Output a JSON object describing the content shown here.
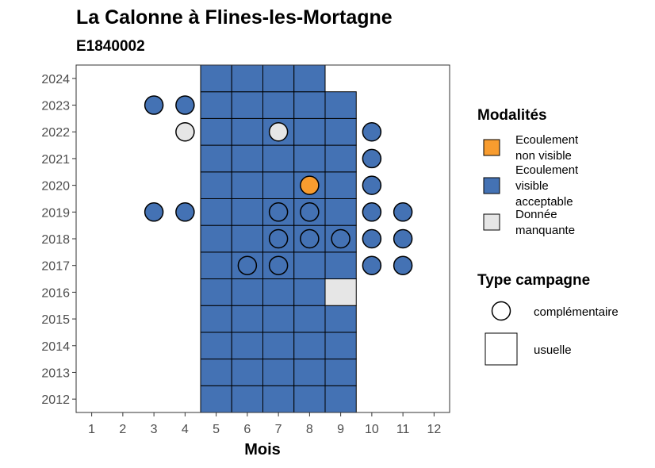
{
  "chart_data": {
    "type": "heatmap",
    "title": "La Calonne à Flines-les-Mortagne",
    "subtitle": "E1840002",
    "xlabel": "Mois",
    "ylabel": "",
    "x_ticks": [
      1,
      2,
      3,
      4,
      5,
      6,
      7,
      8,
      9,
      10,
      11,
      12
    ],
    "y_ticks": [
      2012,
      2013,
      2014,
      2015,
      2016,
      2017,
      2018,
      2019,
      2020,
      2021,
      2022,
      2023,
      2024
    ],
    "xlim": [
      0.5,
      12.5
    ],
    "ylim": [
      2011.5,
      2024.5
    ],
    "grid": false,
    "legend_position": "right",
    "colors": {
      "Ecoulement non visible": "#f89c2f",
      "Ecoulement visible acceptable": "#4472b4",
      "Donnée manquante": "#e6e6e6"
    },
    "tiles": [
      {
        "year": 2012,
        "months": [
          5,
          6,
          7,
          8,
          9
        ],
        "modalite": "Ecoulement visible acceptable"
      },
      {
        "year": 2013,
        "months": [
          5,
          6,
          7,
          8,
          9
        ],
        "modalite": "Ecoulement visible acceptable"
      },
      {
        "year": 2014,
        "months": [
          5,
          6,
          7,
          8,
          9
        ],
        "modalite": "Ecoulement visible acceptable"
      },
      {
        "year": 2015,
        "months": [
          5,
          6,
          7,
          8,
          9
        ],
        "modalite": "Ecoulement visible acceptable"
      },
      {
        "year": 2016,
        "months": [
          5,
          6,
          7,
          8
        ],
        "modalite": "Ecoulement visible acceptable"
      },
      {
        "year": 2016,
        "months": [
          9
        ],
        "modalite": "Donnée manquante"
      },
      {
        "year": 2017,
        "months": [
          5,
          6,
          7,
          8,
          9
        ],
        "modalite": "Ecoulement visible acceptable"
      },
      {
        "year": 2018,
        "months": [
          5,
          6,
          7,
          8,
          9
        ],
        "modalite": "Ecoulement visible acceptable"
      },
      {
        "year": 2019,
        "months": [
          5,
          6,
          7,
          8,
          9
        ],
        "modalite": "Ecoulement visible acceptable"
      },
      {
        "year": 2020,
        "months": [
          5,
          6,
          7,
          8,
          9
        ],
        "modalite": "Ecoulement visible acceptable"
      },
      {
        "year": 2021,
        "months": [
          5,
          6,
          7,
          8,
          9
        ],
        "modalite": "Ecoulement visible acceptable"
      },
      {
        "year": 2022,
        "months": [
          5,
          6,
          7,
          8,
          9
        ],
        "modalite": "Ecoulement visible acceptable"
      },
      {
        "year": 2023,
        "months": [
          5,
          6,
          7,
          8,
          9
        ],
        "modalite": "Ecoulement visible acceptable"
      },
      {
        "year": 2024,
        "months": [
          5,
          6,
          7,
          8
        ],
        "modalite": "Ecoulement visible acceptable"
      }
    ],
    "points": [
      {
        "year": 2023,
        "months": [
          3,
          4
        ],
        "modalite": "Ecoulement visible acceptable"
      },
      {
        "year": 2022,
        "months": [
          4,
          7
        ],
        "modalite": "Donnée manquante"
      },
      {
        "year": 2022,
        "months": [
          10
        ],
        "modalite": "Ecoulement visible acceptable"
      },
      {
        "year": 2021,
        "months": [
          10
        ],
        "modalite": "Ecoulement visible acceptable"
      },
      {
        "year": 2020,
        "months": [
          8
        ],
        "modalite": "Ecoulement non visible"
      },
      {
        "year": 2020,
        "months": [
          10
        ],
        "modalite": "Ecoulement visible acceptable"
      },
      {
        "year": 2019,
        "months": [
          3,
          4,
          7,
          8,
          10,
          11
        ],
        "modalite": "Ecoulement visible acceptable"
      },
      {
        "year": 2018,
        "months": [
          7,
          8,
          9,
          10,
          11
        ],
        "modalite": "Ecoulement visible acceptable"
      },
      {
        "year": 2017,
        "months": [
          6,
          7,
          10,
          11
        ],
        "modalite": "Ecoulement visible acceptable"
      }
    ],
    "legend": {
      "modalites_title": "Modalités",
      "modalites": [
        {
          "key": "Ecoulement non visible",
          "lines": [
            "Ecoulement",
            "non visible"
          ],
          "color": "#f89c2f"
        },
        {
          "key": "Ecoulement visible acceptable",
          "lines": [
            "Ecoulement",
            "visible",
            "acceptable"
          ],
          "color": "#4472b4"
        },
        {
          "key": "Donnée manquante",
          "lines": [
            "Donnée",
            "manquante"
          ],
          "color": "#e6e6e6"
        }
      ],
      "campagne_title": "Type campagne",
      "campagnes": [
        {
          "label": "complémentaire",
          "shape": "circle"
        },
        {
          "label": "usuelle",
          "shape": "square"
        }
      ]
    }
  }
}
